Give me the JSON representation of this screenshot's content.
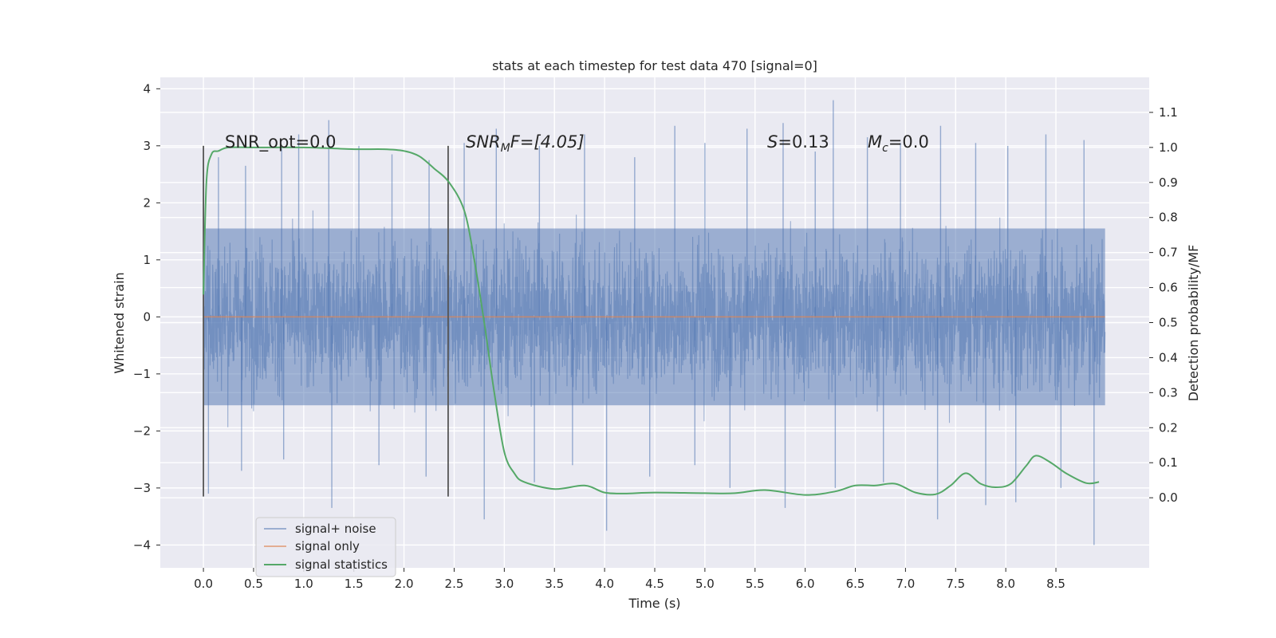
{
  "chart_data": {
    "type": "line",
    "title": "stats at each timestep for test data 470 [signal=0]",
    "xlabel": "Time (s)",
    "ylabel_left": "Whitened strain",
    "ylabel_right": "Detection probability/MF",
    "xlim": [
      -0.43,
      9.43
    ],
    "ylim_left": [
      -4.4,
      4.2
    ],
    "ylim_right": [
      -0.2,
      1.2
    ],
    "xticks": [
      "0.0",
      "0.5",
      "1.0",
      "1.5",
      "2.0",
      "2.5",
      "3.0",
      "3.5",
      "4.0",
      "4.5",
      "5.0",
      "5.5",
      "6.0",
      "6.5",
      "7.0",
      "7.5",
      "8.0",
      "8.5"
    ],
    "yticks_left": [
      "−4",
      "−3",
      "−2",
      "−1",
      "0",
      "1",
      "2",
      "3",
      "4"
    ],
    "yticks_right": [
      "0.0",
      "0.1",
      "0.2",
      "0.3",
      "0.4",
      "0.5",
      "0.6",
      "0.7",
      "0.8",
      "0.9",
      "1.0",
      "1.1"
    ],
    "grid": true,
    "legend_position": "lower-left",
    "colors": {
      "background": "#eaeaf2",
      "grid": "#ffffff",
      "noise": "#4c72b0",
      "signal_only": "#dd8452",
      "statistics": "#55a868",
      "marker": "#555555"
    },
    "series": [
      {
        "name": "signal+ noise",
        "x_range": [
          0.0,
          8.99
        ],
        "band": [
          -1.55,
          1.55
        ],
        "peaks_x": [
          0.15,
          0.42,
          0.78,
          0.95,
          1.25,
          1.55,
          1.88,
          2.25,
          2.6,
          2.92,
          3.35,
          3.8,
          4.3,
          4.7,
          5.0,
          5.42,
          5.78,
          6.1,
          6.28,
          6.62,
          6.95,
          7.35,
          7.7,
          8.02,
          8.4,
          8.78
        ],
        "peaks_y": [
          2.8,
          2.65,
          2.95,
          3.2,
          3.45,
          3.0,
          2.85,
          2.75,
          3.05,
          3.3,
          3.0,
          3.2,
          2.8,
          3.35,
          3.05,
          3.3,
          3.4,
          2.9,
          3.8,
          3.15,
          3.05,
          3.35,
          3.05,
          3.0,
          3.2,
          3.1
        ],
        "troughs_x": [
          0.05,
          0.38,
          0.8,
          1.28,
          1.75,
          2.22,
          2.8,
          3.3,
          3.68,
          4.02,
          4.45,
          4.9,
          5.25,
          5.8,
          6.3,
          6.78,
          7.32,
          7.8,
          8.1,
          8.55,
          8.88
        ],
        "troughs_y": [
          -3.1,
          -2.7,
          -2.5,
          -3.35,
          -2.6,
          -2.8,
          -3.55,
          -2.9,
          -2.6,
          -3.75,
          -2.8,
          -2.6,
          -3.0,
          -3.35,
          -3.0,
          -2.9,
          -3.55,
          -3.3,
          -3.25,
          -3.0,
          -4.0
        ]
      },
      {
        "name": "signal only",
        "x": [
          0.0,
          8.99
        ],
        "y": [
          0.0,
          0.0
        ]
      },
      {
        "name": "signal statistics",
        "x": [
          0.0,
          0.03,
          0.08,
          0.15,
          0.25,
          0.5,
          1.0,
          1.5,
          1.8,
          2.0,
          2.15,
          2.3,
          2.45,
          2.6,
          2.7,
          2.8,
          2.9,
          3.0,
          3.1,
          3.2,
          3.5,
          3.8,
          4.0,
          4.2,
          4.5,
          5.0,
          5.3,
          5.6,
          6.0,
          6.3,
          6.5,
          6.7,
          6.9,
          7.1,
          7.3,
          7.45,
          7.6,
          7.75,
          7.9,
          8.05,
          8.2,
          8.3,
          8.45,
          8.6,
          8.8,
          8.93
        ],
        "y": [
          0.58,
          0.9,
          0.98,
          0.99,
          1.0,
          1.0,
          1.0,
          0.995,
          0.995,
          0.99,
          0.975,
          0.94,
          0.9,
          0.82,
          0.68,
          0.5,
          0.3,
          0.13,
          0.07,
          0.045,
          0.025,
          0.035,
          0.015,
          0.012,
          0.015,
          0.013,
          0.013,
          0.022,
          0.008,
          0.018,
          0.035,
          0.035,
          0.04,
          0.015,
          0.01,
          0.035,
          0.07,
          0.04,
          0.03,
          0.04,
          0.09,
          0.12,
          0.1,
          0.07,
          0.042,
          0.045
        ]
      }
    ],
    "vlines": [
      {
        "x": 0.0,
        "y0": -3.15,
        "y1": 3.0
      },
      {
        "x": 2.44,
        "y0": -3.15,
        "y1": 3.0
      }
    ],
    "annotations": {
      "snr_opt": "SNR_opt=0.0",
      "snr_mf_main": "SNR",
      "snr_mf_sub": "M",
      "snr_mf_tail": "F=[4.05]",
      "s_main": "S",
      "s_tail": "=0.13",
      "mc_main": "M",
      "mc_sub": "c",
      "mc_tail": "=0.0"
    }
  }
}
